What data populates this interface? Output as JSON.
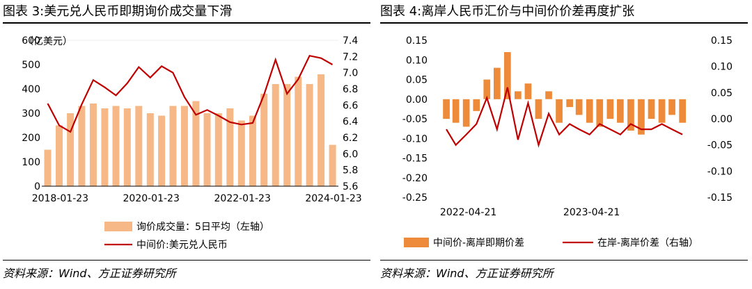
{
  "colors": {
    "bar": "#F5B886",
    "bar_right": "#ED8B3A",
    "line": "#C00000"
  },
  "source_text": "资料来源：Wind、方正证券研究所",
  "chart_data": [
    {
      "type": "bar",
      "title": "图表 3:美元兑人民币即期询价成交量下滑",
      "ylabel": "（亿美元）",
      "ylim": [
        0,
        600
      ],
      "y2lim": [
        5.6,
        7.4
      ],
      "yticks": [
        "0",
        "100",
        "200",
        "300",
        "400",
        "500",
        "600"
      ],
      "y2ticks": [
        "5.6",
        "5.8",
        "6.0",
        "6.2",
        "6.4",
        "6.6",
        "6.8",
        "7.0",
        "7.2",
        "7.4"
      ],
      "xticks": [
        "2018-01-23",
        "2020-01-23",
        "2022-01-23",
        "2024-01-23"
      ],
      "x_range": [
        "2017-10-01",
        "2024-02-20"
      ],
      "series": [
        {
          "name": "询价成交量：5日平均（左轴）",
          "type": "bar",
          "axis": "left",
          "x": [
            "2017-10",
            "2018-01",
            "2018-04",
            "2018-07",
            "2018-10",
            "2019-01",
            "2019-04",
            "2019-07",
            "2019-10",
            "2020-01",
            "2020-04",
            "2020-07",
            "2020-10",
            "2021-01",
            "2021-04",
            "2021-07",
            "2021-10",
            "2022-01",
            "2022-04",
            "2022-07",
            "2022-10",
            "2023-01",
            "2023-04",
            "2023-07",
            "2023-10",
            "2024-01"
          ],
          "values": [
            150,
            250,
            300,
            330,
            340,
            320,
            330,
            320,
            330,
            300,
            290,
            330,
            330,
            350,
            300,
            300,
            320,
            270,
            290,
            380,
            420,
            420,
            450,
            420,
            460,
            170
          ]
        },
        {
          "name": "中间价:美元兑人民币",
          "type": "line",
          "axis": "right",
          "x": [
            "2017-10",
            "2018-01",
            "2018-04",
            "2018-07",
            "2018-10",
            "2019-01",
            "2019-04",
            "2019-07",
            "2019-10",
            "2020-01",
            "2020-04",
            "2020-07",
            "2020-10",
            "2021-01",
            "2021-04",
            "2021-07",
            "2021-10",
            "2022-01",
            "2022-04",
            "2022-07",
            "2022-10",
            "2023-01",
            "2023-04",
            "2023-07",
            "2023-10",
            "2024-01"
          ],
          "values": [
            6.62,
            6.35,
            6.27,
            6.61,
            6.91,
            6.82,
            6.72,
            6.87,
            7.07,
            6.94,
            7.08,
            7.0,
            6.7,
            6.48,
            6.54,
            6.47,
            6.39,
            6.36,
            6.38,
            6.73,
            7.16,
            6.74,
            6.92,
            7.21,
            7.18,
            7.1
          ]
        }
      ]
    },
    {
      "type": "bar",
      "title": "图表 4:离岸人民币汇价与中间价价差再度扩张",
      "ylim": [
        -0.25,
        0.15
      ],
      "y2lim": [
        -0.15,
        0.15
      ],
      "yticks": [
        "-0.25",
        "-0.20",
        "-0.15",
        "-0.10",
        "-0.05",
        "0.00",
        "0.05",
        "0.10",
        "0.15"
      ],
      "y2ticks": [
        "-0.15",
        "-0.10",
        "-0.05",
        "0.00",
        "0.05",
        "0.10",
        "0.15"
      ],
      "xticks": [
        "2022-04-21",
        "2023-04-21"
      ],
      "x_range": [
        "2022-01-15",
        "2024-02-25"
      ],
      "series": [
        {
          "name": "中间价-离岸即期价差",
          "type": "bar",
          "axis": "left",
          "x": [
            "2022-02",
            "2022-03",
            "2022-04",
            "2022-05",
            "2022-06",
            "2022-07",
            "2022-08",
            "2022-09",
            "2022-10",
            "2022-11",
            "2022-12",
            "2023-01",
            "2023-02",
            "2023-03",
            "2023-04",
            "2023-05",
            "2023-06",
            "2023-07",
            "2023-08",
            "2023-09",
            "2023-10",
            "2023-11",
            "2023-12",
            "2024-01"
          ],
          "values": [
            -0.05,
            -0.06,
            -0.07,
            -0.03,
            0.05,
            0.08,
            0.12,
            0.02,
            0.04,
            -0.05,
            0.02,
            -0.06,
            -0.02,
            -0.04,
            -0.06,
            -0.07,
            -0.05,
            -0.06,
            -0.08,
            -0.09,
            -0.05,
            -0.06,
            -0.04,
            -0.06
          ]
        },
        {
          "name": "在岸-离岸价差（右轴）",
          "type": "line",
          "axis": "right",
          "x": [
            "2022-02",
            "2022-03",
            "2022-04",
            "2022-05",
            "2022-06",
            "2022-07",
            "2022-08",
            "2022-09",
            "2022-10",
            "2022-11",
            "2022-12",
            "2023-01",
            "2023-02",
            "2023-03",
            "2023-04",
            "2023-05",
            "2023-06",
            "2023-07",
            "2023-08",
            "2023-09",
            "2023-10",
            "2023-11",
            "2023-12",
            "2024-01"
          ],
          "values": [
            -0.02,
            -0.05,
            -0.03,
            -0.01,
            0.04,
            -0.02,
            0.06,
            -0.04,
            0.03,
            -0.05,
            0.01,
            -0.03,
            -0.01,
            -0.02,
            -0.03,
            -0.01,
            -0.02,
            -0.03,
            -0.01,
            -0.02,
            -0.02,
            -0.01,
            -0.02,
            -0.03
          ]
        }
      ]
    }
  ]
}
